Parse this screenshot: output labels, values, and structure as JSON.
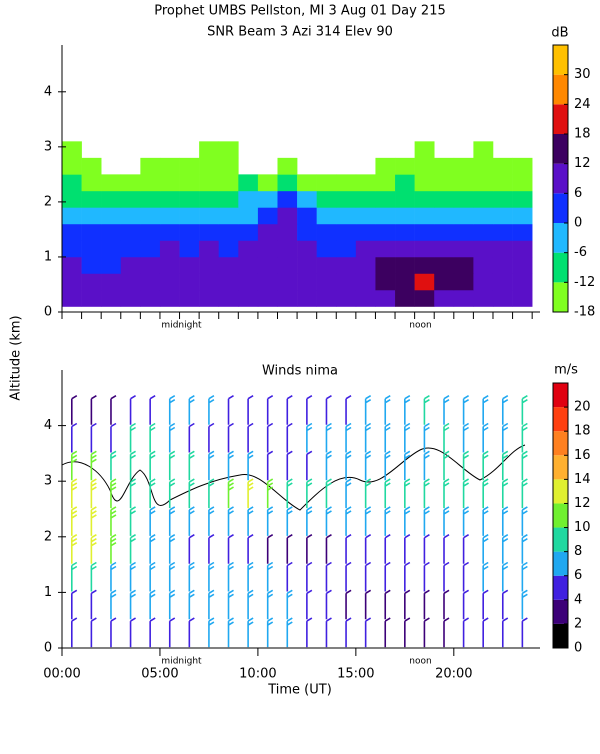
{
  "chart_data": [
    {
      "type": "heatmap",
      "title": "Prophet  UMBS Pellston, MI   3 Aug 01 Day 215",
      "subtitle": "SNR Beam 3 Azi 314 Elev 90",
      "colorbar_label": "dB",
      "ylabel": "Altitude (km)",
      "xlim": [
        0,
        24.4
      ],
      "ylim": [
        0,
        4.85
      ],
      "yticks": [
        0,
        1,
        2,
        3,
        4
      ],
      "xticks": [
        0,
        1,
        2,
        3,
        4,
        5,
        6,
        7,
        8,
        9,
        10,
        11,
        12,
        13,
        14,
        15,
        16,
        17,
        18,
        19,
        20,
        21,
        22,
        23,
        24
      ],
      "annotations": [
        {
          "text": "midnight",
          "x": 6.1
        },
        {
          "text": "noon",
          "x": 18.3
        }
      ],
      "clim": [
        -18,
        36
      ],
      "cticks": [
        -18,
        -12,
        -6,
        0,
        6,
        12,
        18,
        24,
        30
      ],
      "color_bounds": [
        -18,
        -12,
        -6,
        0,
        6,
        12,
        18,
        24,
        30,
        36
      ],
      "colors": [
        "#80ff20",
        "#00e070",
        "#20b8ff",
        "#1030ff",
        "#5a10c8",
        "#3c0060",
        "#e01010",
        "#ff8800",
        "#ffc000"
      ],
      "x_edges": [
        0,
        1,
        2,
        3,
        4,
        5,
        6,
        7,
        8,
        9,
        10,
        11,
        12,
        13,
        14,
        15,
        16,
        17,
        18,
        19,
        20,
        21,
        22,
        23,
        24
      ],
      "y_edges": [
        0.1,
        0.4,
        0.7,
        1.0,
        1.3,
        1.6,
        1.9,
        2.2,
        2.5,
        2.8,
        3.1
      ],
      "z": [
        [
          8,
          8,
          9,
          9,
          8,
          8,
          9,
          9,
          8,
          8,
          9,
          9,
          8,
          8,
          9,
          10,
          10,
          14,
          12,
          10,
          9,
          9,
          8,
          8
        ],
        [
          7,
          7,
          8,
          8,
          8,
          8,
          9,
          9,
          9,
          8,
          9,
          9,
          8,
          8,
          9,
          10,
          12,
          16,
          19,
          13,
          12,
          10,
          9,
          8
        ],
        [
          6,
          4,
          5,
          6,
          6,
          8,
          8,
          9,
          9,
          8,
          9,
          9,
          9,
          9,
          9,
          10,
          12,
          14,
          13,
          13,
          12,
          10,
          9,
          8
        ],
        [
          3,
          2,
          3,
          3,
          4,
          6,
          4,
          6,
          5,
          6,
          6,
          8,
          6,
          5,
          5,
          8,
          9,
          10,
          10,
          10,
          9,
          9,
          8,
          7
        ],
        [
          2,
          1,
          2,
          2,
          3,
          4,
          1,
          2,
          3,
          4,
          6,
          9,
          5,
          2,
          2,
          4,
          3,
          4,
          4,
          5,
          5,
          4,
          3,
          3
        ],
        [
          -2,
          -3,
          -2,
          -3,
          -4,
          -2,
          -6,
          -5,
          -4,
          -1,
          3,
          8,
          0,
          -3,
          -5,
          -3,
          -4,
          -2,
          -3,
          -1,
          -2,
          -3,
          -2,
          -3
        ],
        [
          -8,
          -9,
          -10,
          -8,
          -7,
          -8,
          -10,
          -8,
          -9,
          -6,
          -3,
          0,
          -6,
          -10,
          -10,
          -9,
          -8,
          -7,
          -8,
          -8,
          -9,
          -8,
          -9,
          -10
        ],
        [
          -12,
          -13,
          -15,
          -15,
          -16,
          -14,
          -14,
          -13,
          -14,
          -12,
          -14,
          -10,
          -13,
          -15,
          -16,
          -14,
          -13,
          -12,
          -13,
          -14,
          -15,
          -13,
          -14,
          -15
        ],
        [
          -14,
          -16,
          null,
          null,
          -17,
          -17,
          -16,
          -15,
          -16,
          null,
          null,
          -16,
          null,
          null,
          null,
          null,
          -17,
          -16,
          -16,
          -17,
          -16,
          -16,
          -17,
          -17
        ],
        [
          -16,
          null,
          null,
          null,
          null,
          null,
          null,
          -17,
          -17,
          null,
          null,
          null,
          null,
          null,
          null,
          null,
          null,
          null,
          -17,
          null,
          null,
          -17,
          null,
          null
        ]
      ]
    },
    {
      "type": "barbs",
      "title": "Winds nima",
      "colorbar_label": "m/s",
      "ylabel": "Altitude (km)",
      "xlabel": "Time (UT)",
      "xlim": [
        0,
        24.4
      ],
      "ylim": [
        0,
        5
      ],
      "yticks": [
        0,
        1,
        2,
        3,
        4
      ],
      "xticks": [
        {
          "value": 0,
          "label": "00:00"
        },
        {
          "value": 5,
          "label": "05:00"
        },
        {
          "value": 10,
          "label": "10:00"
        },
        {
          "value": 15,
          "label": "15:00"
        },
        {
          "value": 20,
          "label": "20:00"
        }
      ],
      "annotations": [
        {
          "text": "midnight",
          "x": 6.1
        },
        {
          "text": "noon",
          "x": 18.3
        }
      ],
      "clim": [
        0,
        22
      ],
      "cticks": [
        0,
        2,
        4,
        6,
        8,
        10,
        12,
        14,
        16,
        18,
        20
      ],
      "color_bounds": [
        0,
        2,
        4,
        6,
        8,
        10,
        12,
        14,
        16,
        18,
        20,
        22
      ],
      "colors": [
        "#000000",
        "#3c0078",
        "#4020e0",
        "#20a8f0",
        "#20d8a0",
        "#70f030",
        "#e0f030",
        "#ffb030",
        "#ff8020",
        "#ff4010",
        "#e00010"
      ],
      "x": [
        0.5,
        1.5,
        2.5,
        3.5,
        4.5,
        5.5,
        6.5,
        7.5,
        8.5,
        9.5,
        10.5,
        11.5,
        12.5,
        13.5,
        14.5,
        15.5,
        16.5,
        17.5,
        18.5,
        19.5,
        20.5,
        21.5,
        22.5,
        23.5
      ],
      "levels": [
        0.25,
        0.75,
        1.25,
        1.75,
        2.25,
        2.75,
        3.25,
        3.75,
        4.25
      ],
      "speed": [
        [
          4,
          4,
          5,
          5,
          5,
          5,
          5,
          6,
          6,
          6,
          6,
          6,
          5,
          5,
          4,
          4,
          3,
          3,
          3,
          3,
          4,
          4,
          5,
          5
        ],
        [
          5,
          5,
          6,
          6,
          6,
          6,
          7,
          7,
          7,
          7,
          6,
          6,
          5,
          4,
          3,
          3,
          3,
          3,
          3,
          3,
          4,
          5,
          5,
          6
        ],
        [
          8,
          8,
          7,
          7,
          6,
          6,
          7,
          7,
          6,
          6,
          6,
          5,
          5,
          5,
          4,
          4,
          4,
          5,
          5,
          5,
          5,
          6,
          6,
          6
        ],
        [
          12,
          12,
          10,
          9,
          7,
          6,
          5,
          5,
          4,
          4,
          3,
          3,
          3,
          3,
          4,
          4,
          4,
          5,
          5,
          5,
          5,
          6,
          6,
          6
        ],
        [
          13,
          13,
          11,
          9,
          7,
          7,
          6,
          7,
          7,
          7,
          6,
          6,
          7,
          7,
          7,
          6,
          6,
          6,
          6,
          6,
          7,
          7,
          7,
          7
        ],
        [
          13,
          13,
          11,
          9,
          9,
          8,
          8,
          9,
          10,
          12,
          10,
          8,
          8,
          8,
          7,
          8,
          8,
          8,
          8,
          8,
          8,
          8,
          8,
          8
        ],
        [
          10,
          10,
          9,
          9,
          8,
          8,
          8,
          7,
          6,
          6,
          5,
          4,
          5,
          6,
          6,
          6,
          6,
          7,
          7,
          8,
          8,
          9,
          8,
          8
        ],
        [
          4,
          4,
          5,
          9,
          8,
          7,
          5,
          5,
          4,
          5,
          4,
          4,
          6,
          7,
          7,
          7,
          6,
          6,
          7,
          8,
          7,
          6,
          7,
          8
        ],
        [
          3,
          3,
          3,
          4,
          5,
          6,
          7,
          6,
          5,
          5,
          4,
          4,
          5,
          5,
          5,
          6,
          6,
          7,
          8,
          7,
          6,
          6,
          7,
          9
        ]
      ]
    }
  ]
}
